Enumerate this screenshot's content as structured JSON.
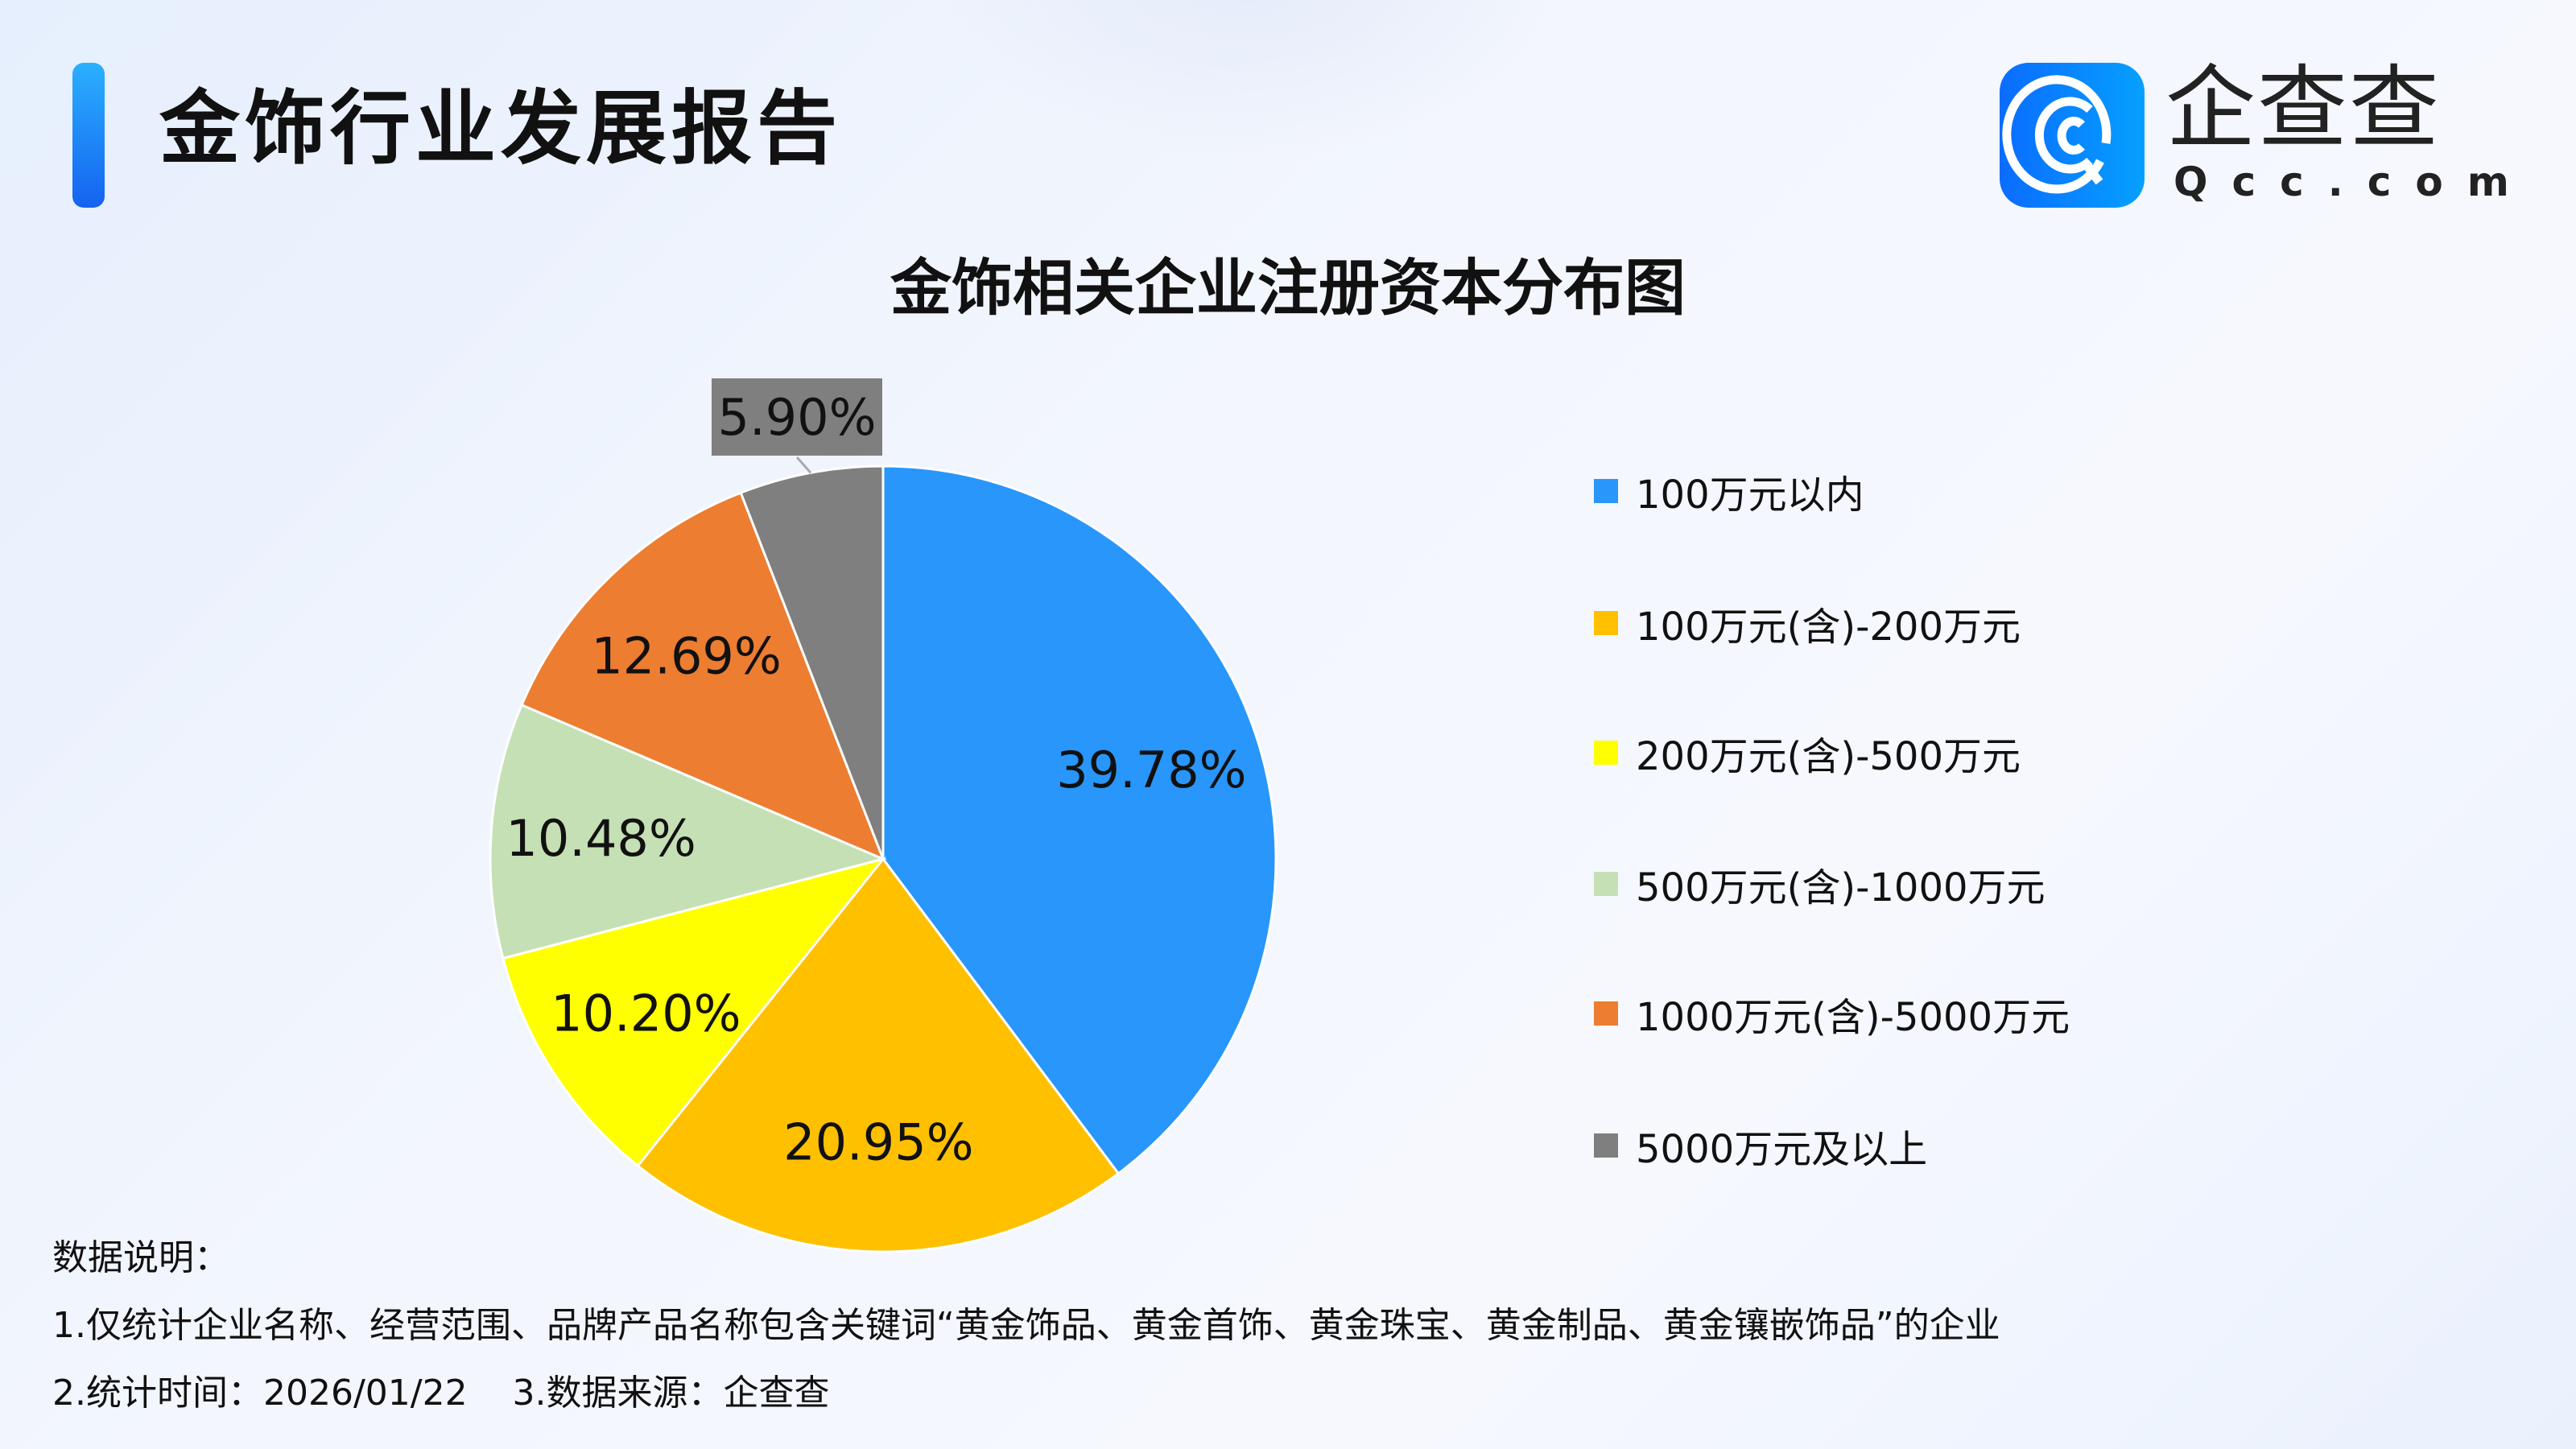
{
  "header": {
    "title": "金饰行业发展报告"
  },
  "logo": {
    "name": "企查查",
    "domain": "Qcc.com"
  },
  "chart_data": {
    "type": "pie",
    "title": "金饰相关企业注册资本分布图",
    "categories": [
      "100万元以内",
      "100万元(含)-200万元",
      "200万元(含)-500万元",
      "500万元(含)-1000万元",
      "1000万元(含)-5000万元",
      "5000万元及以上"
    ],
    "values": [
      39.78,
      20.95,
      10.2,
      10.48,
      12.69,
      5.9
    ],
    "labels": [
      "39.78%",
      "20.95%",
      "10.20%",
      "10.48%",
      "12.69%",
      "5.90%"
    ],
    "colors": [
      "#2896fa",
      "#ffc000",
      "#ffff00",
      "#c5e0b4",
      "#ed7d31",
      "#7f7f7f"
    ],
    "start_angle": "12 o'clock",
    "direction": "clockwise",
    "legend_position": "right"
  },
  "notes": {
    "heading": "数据说明：",
    "line1": "1.仅统计企业名称、经营范围、品牌产品名称包含关键词“黄金饰品、黄金首饰、黄金珠宝、黄金制品、黄金镶嵌饰品”的企业",
    "line2": "2.统计时间：2026/01/22    3.数据来源：企查查"
  }
}
